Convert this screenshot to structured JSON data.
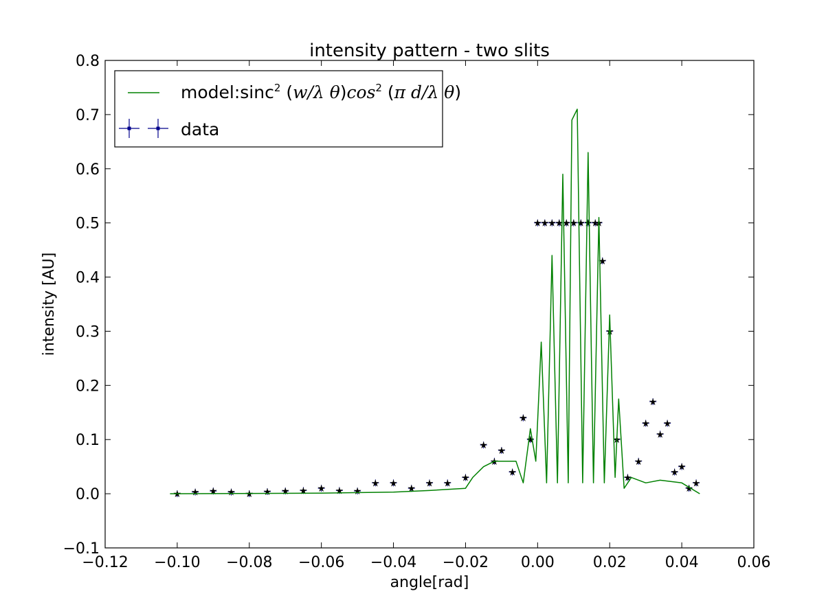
{
  "chart_data": {
    "type": "line",
    "title": "intensity pattern - two slits",
    "xlabel": "angle[rad]",
    "ylabel": "intensity [AU]",
    "xlim": [
      -0.12,
      0.06
    ],
    "ylim": [
      -0.1,
      0.8
    ],
    "xticks": [
      -0.12,
      -0.1,
      -0.08,
      -0.06,
      -0.04,
      -0.02,
      0.0,
      0.02,
      0.04,
      0.06
    ],
    "xtick_labels": [
      "−0.12",
      "−0.10",
      "−0.08",
      "−0.06",
      "−0.04",
      "−0.02",
      "0.00",
      "0.02",
      "0.04",
      "0.06"
    ],
    "yticks": [
      -0.1,
      0.0,
      0.1,
      0.2,
      0.3,
      0.4,
      0.5,
      0.6,
      0.7,
      0.8
    ],
    "ytick_labels": [
      "−0.1",
      "0.0",
      "0.1",
      "0.2",
      "0.3",
      "0.4",
      "0.5",
      "0.6",
      "0.7",
      "0.8"
    ],
    "grid": false,
    "legend_position": "top-left",
    "series": [
      {
        "name": "model:sinc² (w/λ θ)cos² (π d/λ θ)",
        "kind": "line",
        "color": "#008000",
        "x": [
          -0.102,
          -0.06,
          -0.04,
          -0.03,
          -0.02,
          -0.018,
          -0.015,
          -0.012,
          -0.009,
          -0.006,
          -0.004,
          -0.002,
          -0.0005,
          0.001,
          0.0025,
          0.004,
          0.0055,
          0.007,
          0.0085,
          0.0095,
          0.011,
          0.0125,
          0.014,
          0.0155,
          0.017,
          0.0185,
          0.02,
          0.0215,
          0.0225,
          0.024,
          0.026,
          0.03,
          0.034,
          0.04,
          0.045
        ],
        "y": [
          0.0,
          0.001,
          0.003,
          0.006,
          0.01,
          0.03,
          0.05,
          0.06,
          0.06,
          0.06,
          0.02,
          0.12,
          0.06,
          0.28,
          0.02,
          0.44,
          0.02,
          0.59,
          0.02,
          0.69,
          0.71,
          0.02,
          0.63,
          0.02,
          0.51,
          0.02,
          0.33,
          0.03,
          0.175,
          0.01,
          0.03,
          0.02,
          0.025,
          0.02,
          0.0
        ]
      },
      {
        "name": "data",
        "kind": "errorbar-points",
        "color": "#00008B",
        "x": [
          -0.1,
          -0.095,
          -0.09,
          -0.085,
          -0.08,
          -0.075,
          -0.07,
          -0.065,
          -0.06,
          -0.055,
          -0.05,
          -0.045,
          -0.04,
          -0.035,
          -0.03,
          -0.025,
          -0.02,
          -0.015,
          -0.012,
          -0.01,
          -0.007,
          -0.004,
          -0.002,
          0.0,
          0.002,
          0.004,
          0.006,
          0.008,
          0.01,
          0.012,
          0.014,
          0.016,
          0.017,
          0.018,
          0.02,
          0.022,
          0.025,
          0.028,
          0.03,
          0.032,
          0.034,
          0.036,
          0.038,
          0.04,
          0.042,
          0.044
        ],
        "y": [
          0.0,
          0.003,
          0.005,
          0.003,
          0.0,
          0.004,
          0.005,
          0.006,
          0.01,
          0.006,
          0.005,
          0.02,
          0.02,
          0.01,
          0.02,
          0.02,
          0.03,
          0.09,
          0.06,
          0.08,
          0.04,
          0.14,
          0.1,
          0.5,
          0.5,
          0.5,
          0.5,
          0.5,
          0.5,
          0.5,
          0.5,
          0.5,
          0.5,
          0.43,
          0.3,
          0.1,
          0.03,
          0.06,
          0.13,
          0.17,
          0.11,
          0.13,
          0.04,
          0.05,
          0.01,
          0.02
        ]
      }
    ]
  }
}
